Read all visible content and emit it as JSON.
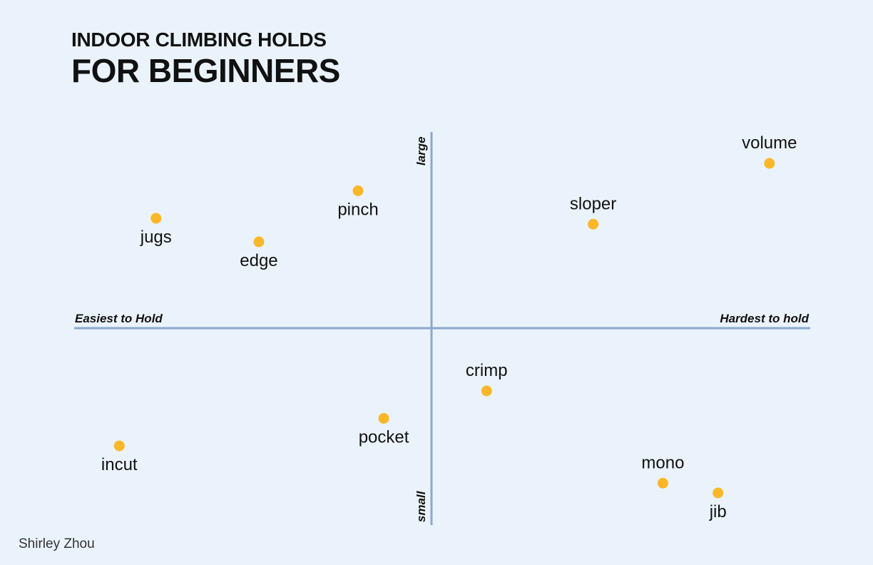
{
  "title": {
    "line1": "INDOOR CLIMBING HOLDS",
    "line2": "FOR BEGINNERS"
  },
  "credit": "Shirley Zhou",
  "colors": {
    "background": "#eaf3fc",
    "axis": "#8aa8cc",
    "point": "#fbb728",
    "text": "#111111"
  },
  "chart_data": {
    "type": "scatter",
    "title": "INDOOR CLIMBING HOLDS FOR BEGINNERS",
    "x_axis": {
      "left_label": "Easiest to Hold",
      "right_label": "Hardest to hold",
      "range": [
        -10,
        10
      ]
    },
    "y_axis": {
      "top_label": "large",
      "bottom_label": "small",
      "range": [
        -10,
        10
      ]
    },
    "grid": false,
    "points": [
      {
        "name": "jugs",
        "x": -7.5,
        "y": 5.6,
        "label_pos": "below"
      },
      {
        "name": "edge",
        "x": -4.7,
        "y": 4.4,
        "label_pos": "below"
      },
      {
        "name": "pinch",
        "x": -2.0,
        "y": 7.0,
        "label_pos": "below"
      },
      {
        "name": "sloper",
        "x": 4.4,
        "y": 5.3,
        "label_pos": "above"
      },
      {
        "name": "volume",
        "x": 9.2,
        "y": 8.4,
        "label_pos": "above"
      },
      {
        "name": "crimp",
        "x": 1.5,
        "y": -3.2,
        "label_pos": "above"
      },
      {
        "name": "pocket",
        "x": -1.3,
        "y": -4.6,
        "label_pos": "below"
      },
      {
        "name": "incut",
        "x": -8.5,
        "y": -6.0,
        "label_pos": "below"
      },
      {
        "name": "mono",
        "x": 6.3,
        "y": -7.9,
        "label_pos": "above"
      },
      {
        "name": "jib",
        "x": 7.8,
        "y": -8.4,
        "label_pos": "below"
      }
    ]
  }
}
